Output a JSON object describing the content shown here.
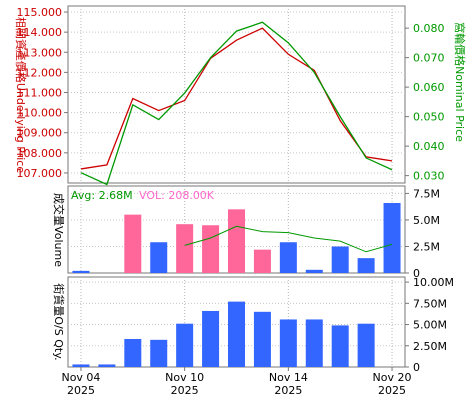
{
  "chart_data": {
    "type": "line",
    "x_labels": [
      {
        "line1": "Nov 04",
        "line2": "2025",
        "index": 0
      },
      {
        "line1": "Nov 10",
        "line2": "2025",
        "index": 4
      },
      {
        "line1": "Nov 14",
        "line2": "2025",
        "index": 8
      },
      {
        "line1": "Nov 20",
        "line2": "2025",
        "index": 12
      }
    ],
    "price_panel": {
      "left_axis_label": "相關資產價格Underlying Price",
      "right_axis_label": "窩輪價格Nominal Price",
      "left_ticks": [
        "115.000",
        "114.000",
        "113.000",
        "112.000",
        "111.000",
        "110.000",
        "109.000",
        "108.000",
        "107.000"
      ],
      "right_ticks": [
        "0.080",
        "0.070",
        "0.060",
        "0.050",
        "0.040",
        "0.030"
      ],
      "left_range": [
        106.5,
        115.3
      ],
      "right_range": [
        0.0275,
        0.0875
      ],
      "underlying_price": [
        107.2,
        107.4,
        110.7,
        110.1,
        110.6,
        112.7,
        113.6,
        114.2,
        112.9,
        112.1,
        109.6,
        107.8,
        107.6
      ],
      "nominal_price": [
        0.031,
        0.027,
        0.054,
        0.049,
        0.058,
        0.07,
        0.079,
        0.082,
        0.075,
        0.065,
        0.05,
        0.036,
        0.032
      ],
      "underlying_color": "#cc0000",
      "nominal_color": "#009900"
    },
    "volume_panel": {
      "axis_label": "成交量Volume",
      "avg_label": "Avg: 2.68M",
      "vol_label": "VOL: 208.00K",
      "ticks": [
        "7.5M",
        "5.0M",
        "2.5M",
        "0"
      ],
      "range": [
        0,
        8.2
      ],
      "values": [
        0.2,
        0,
        5.5,
        2.9,
        4.6,
        4.5,
        6.0,
        2.2,
        2.9,
        0.3,
        2.5,
        1.4,
        6.6
      ],
      "colors": [
        "blue",
        "none",
        "pink",
        "blue",
        "pink",
        "pink",
        "pink",
        "pink",
        "blue",
        "blue",
        "blue",
        "blue",
        "blue"
      ],
      "avg_line": [
        null,
        null,
        null,
        null,
        2.6,
        3.3,
        4.4,
        3.9,
        3.8,
        3.3,
        3.0,
        2.0,
        2.7
      ],
      "pink_color": "#ff6699",
      "blue_color": "#3366ff",
      "avg_color": "#009900",
      "avg_text_color": "#009900",
      "vol_text_color": "#ff66cc"
    },
    "outstanding_panel": {
      "axis_label": "街貨量O/S Qty.",
      "ticks": [
        "10.00M",
        "7.50M",
        "5.00M",
        "2.50M",
        "0"
      ],
      "range": [
        0,
        10.6
      ],
      "values": [
        0.3,
        0.3,
        3.3,
        3.2,
        5.1,
        6.6,
        7.7,
        6.5,
        5.6,
        5.6,
        4.9,
        5.1,
        null
      ],
      "color": "#3366ff"
    }
  }
}
